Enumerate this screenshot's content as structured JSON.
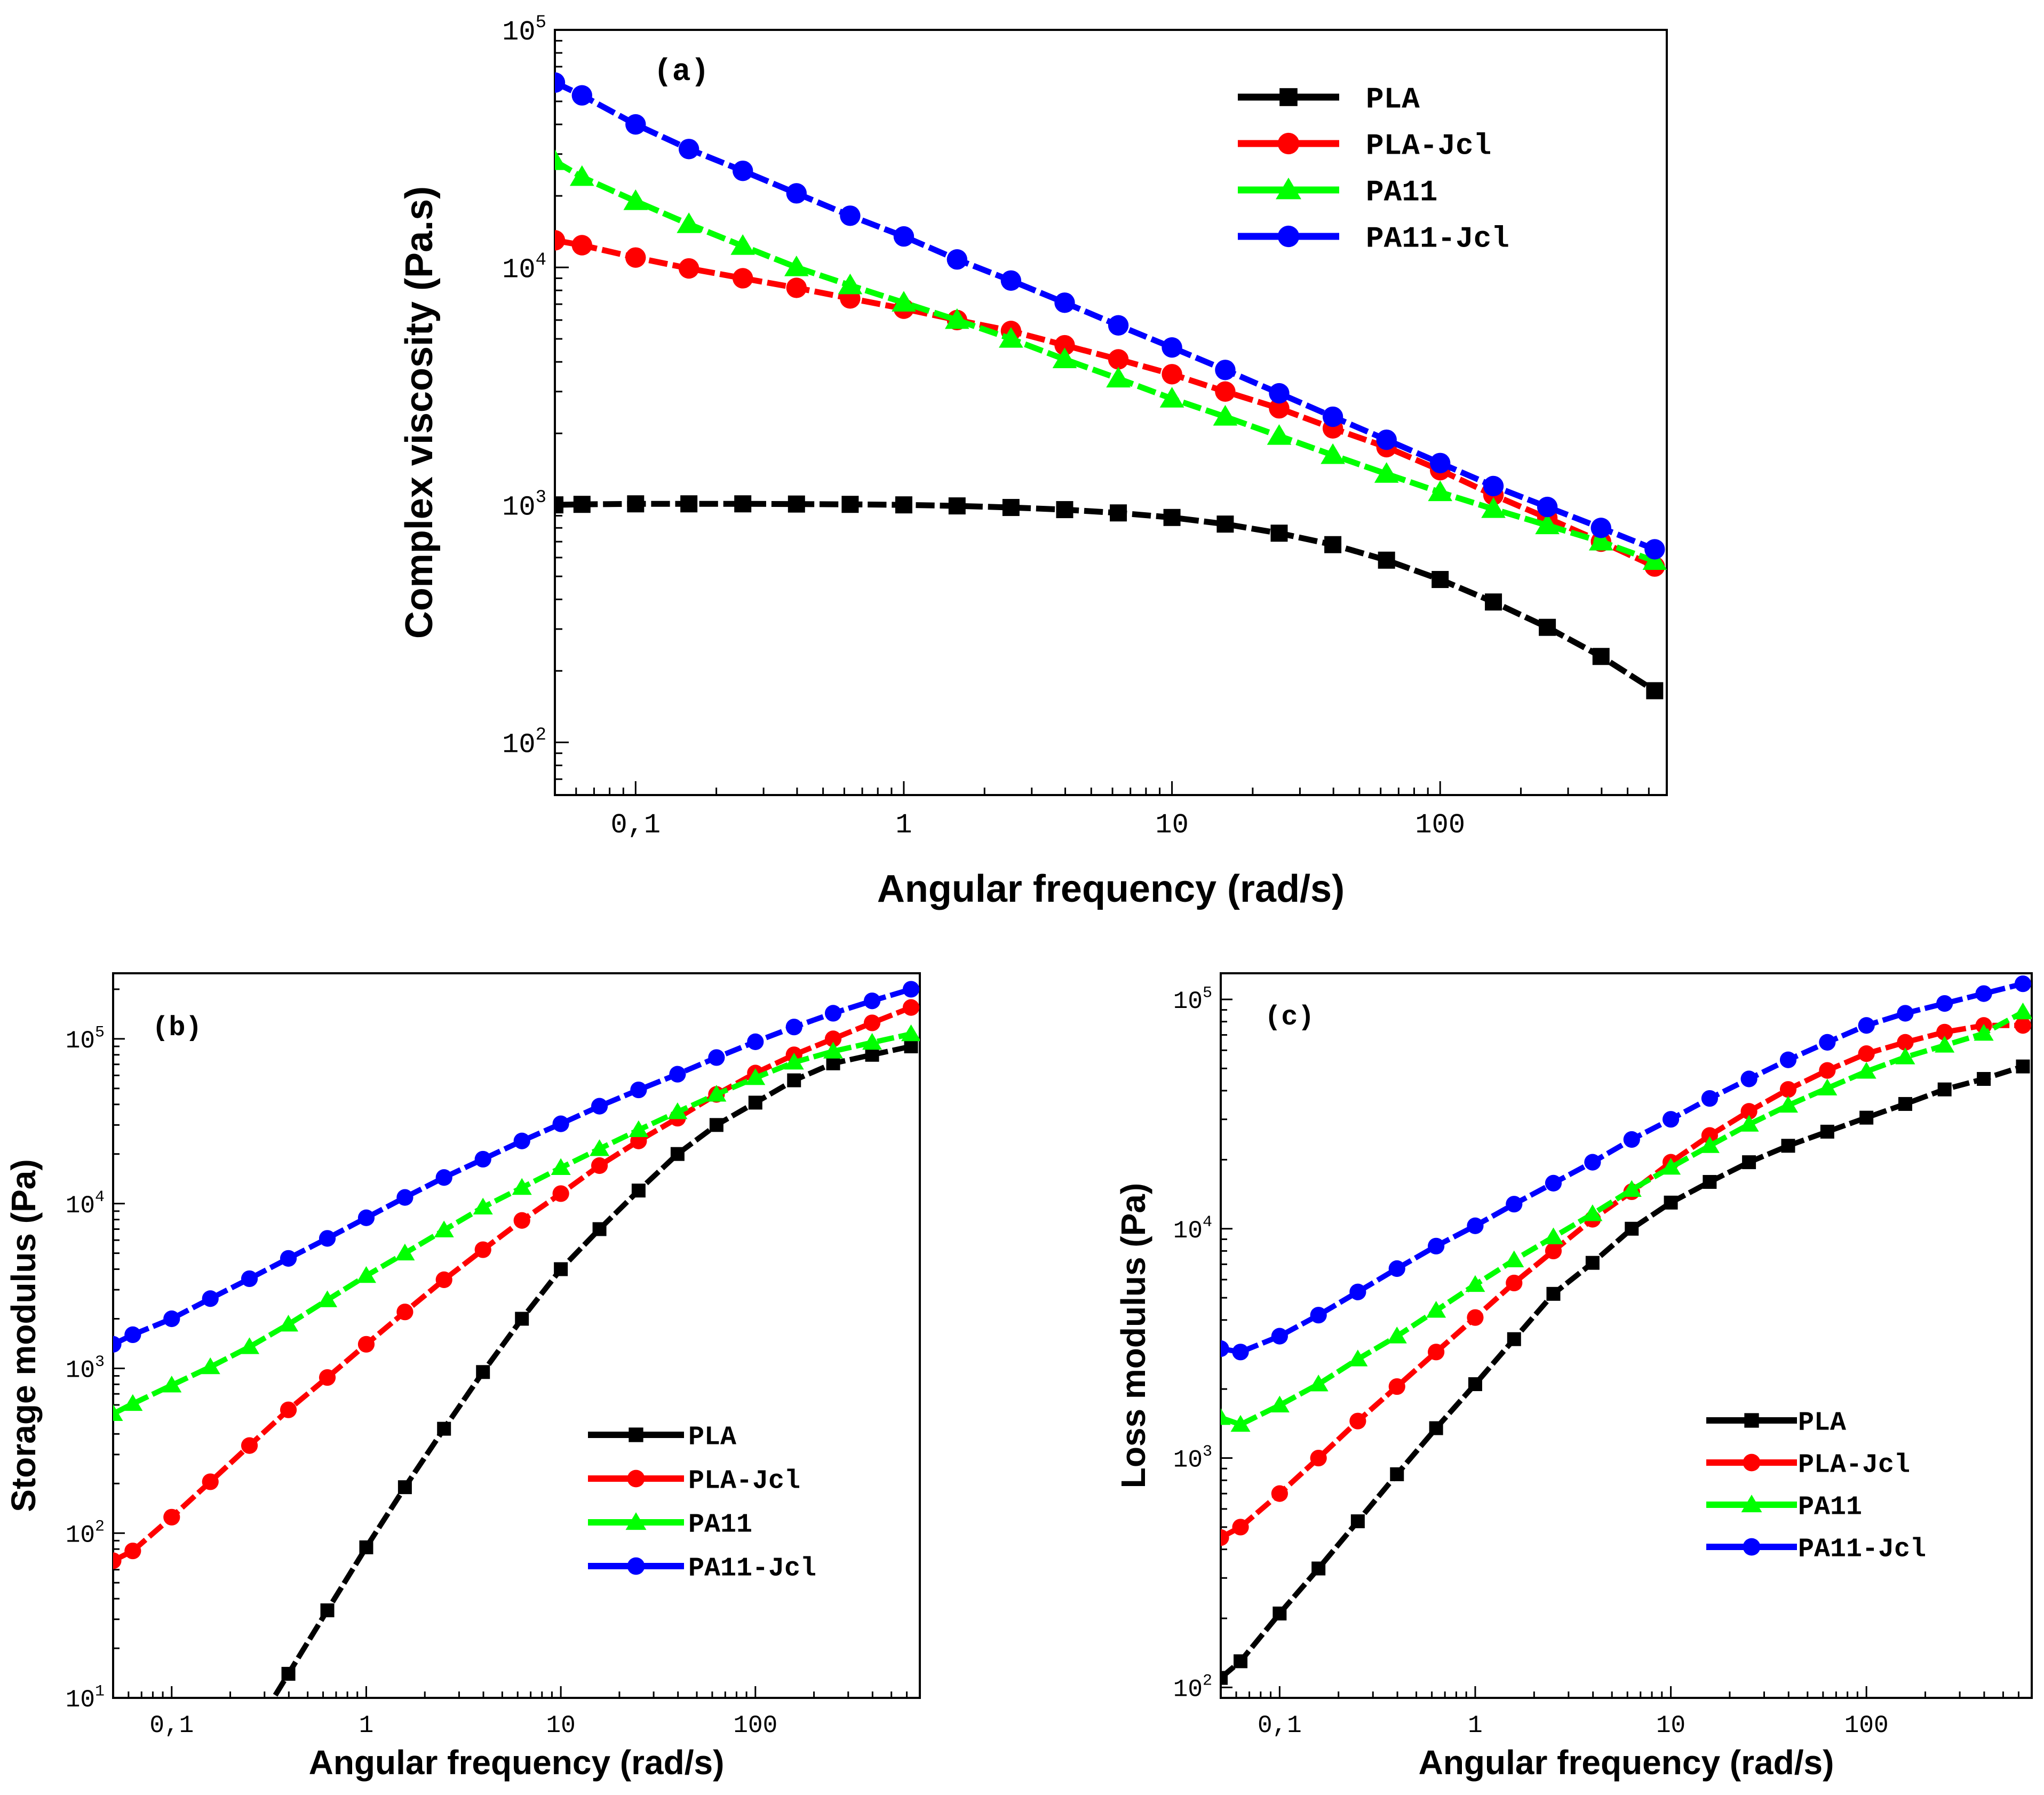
{
  "figure": {
    "colors": {
      "PLA": "#000000",
      "PLA-Jcl": "#ff0000",
      "PA11": "#00ff00",
      "PA11-Jcl": "#0000ff"
    }
  },
  "chart_data": [
    {
      "type": "line",
      "panel": "(a)",
      "title": "",
      "xlabel": "Angular frequency (rad/s)",
      "ylabel": "Complex viscosity (Pa.s)",
      "xscale": "log",
      "yscale": "log",
      "xlim": [
        0.05,
        700
      ],
      "ylim": [
        60,
        100000
      ],
      "x_ticks": [
        {
          "v": 0.1,
          "label": "0,1"
        },
        {
          "v": 1,
          "label": "1"
        },
        {
          "v": 10,
          "label": "10"
        },
        {
          "v": 100,
          "label": "100"
        }
      ],
      "y_ticks": [
        {
          "v": 100,
          "base": "10",
          "exp": "2"
        },
        {
          "v": 1000,
          "base": "10",
          "exp": "3"
        },
        {
          "v": 10000,
          "base": "10",
          "exp": "4"
        },
        {
          "v": 100000,
          "base": "10",
          "exp": "5"
        }
      ],
      "legend_position": "top-right",
      "x": [
        0.05,
        0.0631,
        0.1,
        0.158,
        0.251,
        0.398,
        0.631,
        1,
        1.58,
        2.51,
        3.98,
        6.31,
        10,
        15.8,
        25.1,
        39.8,
        63.1,
        100,
        158,
        251,
        398,
        631
      ],
      "series": [
        {
          "name": "PLA",
          "marker": "square",
          "values": [
            1000,
            1005,
            1010,
            1010,
            1010,
            1008,
            1005,
            1000,
            990,
            975,
            955,
            925,
            885,
            830,
            760,
            680,
            585,
            485,
            390,
            305,
            230,
            165
          ]
        },
        {
          "name": "PLA-Jcl",
          "marker": "circle",
          "values": [
            13000,
            12400,
            11000,
            9900,
            9000,
            8200,
            7400,
            6700,
            6000,
            5400,
            4700,
            4100,
            3550,
            3000,
            2550,
            2100,
            1750,
            1400,
            1100,
            880,
            700,
            550
          ]
        },
        {
          "name": "PA11",
          "marker": "triangle",
          "values": [
            28000,
            24000,
            19000,
            15200,
            12300,
            10000,
            8400,
            7100,
            6000,
            5000,
            4100,
            3400,
            2800,
            2350,
            1950,
            1620,
            1350,
            1130,
            960,
            820,
            700,
            580
          ]
        },
        {
          "name": "PA11-Jcl",
          "marker": "circle",
          "values": [
            60000,
            53000,
            40000,
            31500,
            25500,
            20500,
            16500,
            13500,
            10800,
            8800,
            7100,
            5700,
            4600,
            3700,
            2950,
            2350,
            1880,
            1500,
            1200,
            980,
            800,
            650
          ]
        }
      ]
    },
    {
      "type": "line",
      "panel": "(b)",
      "title": "",
      "xlabel": "Angular frequency (rad/s)",
      "ylabel": "Storage modulus (Pa)",
      "xscale": "log",
      "yscale": "log",
      "xlim": [
        0.05,
        700
      ],
      "ylim": [
        10,
        250000
      ],
      "x_ticks": [
        {
          "v": 0.1,
          "label": "0,1"
        },
        {
          "v": 1,
          "label": "1"
        },
        {
          "v": 10,
          "label": "10"
        },
        {
          "v": 100,
          "label": "100"
        }
      ],
      "y_ticks": [
        {
          "v": 10,
          "base": "10",
          "exp": "1"
        },
        {
          "v": 100,
          "base": "10",
          "exp": "2"
        },
        {
          "v": 1000,
          "base": "10",
          "exp": "3"
        },
        {
          "v": 10000,
          "base": "10",
          "exp": "4"
        },
        {
          "v": 100000,
          "base": "10",
          "exp": "5"
        }
      ],
      "legend_position": "lower-right",
      "x": [
        0.05,
        0.0631,
        0.1,
        0.158,
        0.251,
        0.398,
        0.631,
        1,
        1.58,
        2.51,
        3.98,
        6.31,
        10,
        15.8,
        25.1,
        39.8,
        63.1,
        100,
        158,
        251,
        398,
        631
      ],
      "series": [
        {
          "name": "PLA",
          "marker": "square",
          "values": [
            null,
            null,
            null,
            null,
            null,
            14,
            34,
            82,
            190,
            430,
            950,
            2000,
            4000,
            7000,
            12000,
            20000,
            30000,
            41000,
            56000,
            71000,
            80000,
            90000
          ]
        },
        {
          "name": "PLA-Jcl",
          "marker": "circle",
          "values": [
            68,
            78,
            125,
            205,
            340,
            560,
            880,
            1400,
            2200,
            3450,
            5250,
            7900,
            11500,
            17000,
            24000,
            33000,
            46000,
            62000,
            80000,
            100000,
            125000,
            155000
          ]
        },
        {
          "name": "PA11",
          "marker": "triangle",
          "values": [
            530,
            610,
            790,
            1020,
            1350,
            1850,
            2600,
            3650,
            5000,
            6900,
            9500,
            12500,
            16500,
            21500,
            28000,
            36000,
            46000,
            58000,
            72000,
            84000,
            95000,
            107000
          ]
        },
        {
          "name": "PA11-Jcl",
          "marker": "circle",
          "values": [
            1400,
            1600,
            2000,
            2650,
            3500,
            4650,
            6150,
            8200,
            10900,
            14400,
            18600,
            24000,
            30500,
            39000,
            49000,
            61000,
            77000,
            96000,
            118000,
            143000,
            170000,
            200000
          ]
        }
      ]
    },
    {
      "type": "line",
      "panel": "(c)",
      "title": "",
      "xlabel": "Angular frequency (rad/s)",
      "ylabel": "Loss modulus (Pa)",
      "xscale": "log",
      "yscale": "log",
      "xlim": [
        0.05,
        700
      ],
      "ylim": [
        90,
        130000
      ],
      "x_ticks": [
        {
          "v": 0.1,
          "label": "0,1"
        },
        {
          "v": 1,
          "label": "1"
        },
        {
          "v": 10,
          "label": "10"
        },
        {
          "v": 100,
          "label": "100"
        }
      ],
      "y_ticks": [
        {
          "v": 100,
          "base": "10",
          "exp": "2"
        },
        {
          "v": 1000,
          "base": "10",
          "exp": "3"
        },
        {
          "v": 10000,
          "base": "10",
          "exp": "4"
        },
        {
          "v": 100000,
          "base": "10",
          "exp": "5"
        }
      ],
      "legend_position": "lower-right",
      "x": [
        0.05,
        0.0631,
        0.1,
        0.158,
        0.251,
        0.398,
        0.631,
        1,
        1.58,
        2.51,
        3.98,
        6.31,
        10,
        15.8,
        25.1,
        39.8,
        63.1,
        100,
        158,
        251,
        398,
        631
      ],
      "series": [
        {
          "name": "PLA",
          "marker": "square",
          "values": [
            110,
            130,
            210,
            330,
            530,
            850,
            1350,
            2100,
            3300,
            5200,
            7100,
            10000,
            13000,
            16000,
            19500,
            23000,
            26500,
            30500,
            35000,
            40500,
            45000,
            51000
          ]
        },
        {
          "name": "PLA-Jcl",
          "marker": "circle",
          "values": [
            450,
            500,
            700,
            1000,
            1450,
            2050,
            2900,
            4100,
            5800,
            8000,
            11000,
            14500,
            19500,
            25500,
            32500,
            40500,
            49000,
            58000,
            65000,
            72000,
            77000,
            77000
          ]
        },
        {
          "name": "PA11",
          "marker": "triangle",
          "values": [
            1500,
            1400,
            1700,
            2100,
            2700,
            3400,
            4400,
            5700,
            7300,
            9200,
            11600,
            14800,
            18500,
            23000,
            28500,
            34500,
            41000,
            48500,
            56000,
            63000,
            71000,
            88000
          ]
        },
        {
          "name": "PA11-Jcl",
          "marker": "circle",
          "values": [
            3000,
            2900,
            3400,
            4200,
            5300,
            6700,
            8400,
            10300,
            12800,
            15800,
            19500,
            24500,
            30000,
            37000,
            45000,
            54500,
            65000,
            77000,
            87000,
            96000,
            106000,
            117000
          ]
        }
      ]
    }
  ]
}
